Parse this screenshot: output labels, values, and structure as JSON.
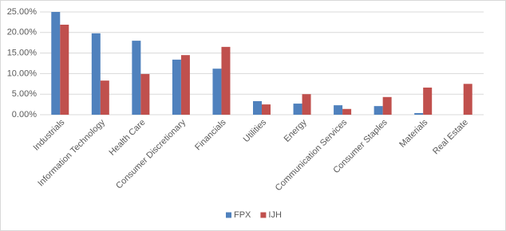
{
  "chart_data": {
    "type": "bar",
    "categories": [
      "Industrials",
      "Information Technology",
      "Health Care",
      "Consumer Discretionary",
      "Financials",
      "Utilities",
      "Energy",
      "Communication Services",
      "Consumer Staples",
      "Materials",
      "Real Estate"
    ],
    "series": [
      {
        "name": "FPX",
        "color": "#4f81bd",
        "values": [
          25.0,
          19.8,
          18.0,
          13.4,
          11.2,
          3.3,
          2.7,
          2.3,
          2.1,
          0.4,
          0
        ]
      },
      {
        "name": "IJH",
        "color": "#c0504d",
        "values": [
          21.9,
          8.3,
          9.9,
          14.5,
          16.5,
          2.5,
          5.0,
          1.4,
          4.3,
          6.6,
          7.5
        ]
      }
    ],
    "ylim": [
      0,
      25
    ],
    "yticks": [
      {
        "value": 0,
        "label": "0.00%"
      },
      {
        "value": 5,
        "label": "5.00%"
      },
      {
        "value": 10,
        "label": "10.00%"
      },
      {
        "value": 15,
        "label": "15.00%"
      },
      {
        "value": 20,
        "label": "20.00%"
      },
      {
        "value": 25,
        "label": "25.00%"
      }
    ],
    "grid": true,
    "legend": "bottom"
  }
}
